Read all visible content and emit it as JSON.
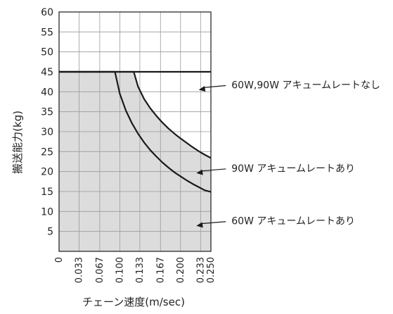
{
  "chart_data": {
    "type": "area",
    "xlabel": "チェーン速度(m/sec)",
    "ylabel": "搬送能力(kg)",
    "xlim": [
      0,
      0.25
    ],
    "ylim": [
      0,
      60
    ],
    "x_ticks": [
      "0",
      "0.033",
      "0.067",
      "0.100",
      "0.133",
      "0.167",
      "0.200",
      "0.233",
      "0.250"
    ],
    "x_tick_values": [
      0,
      0.033,
      0.067,
      0.1,
      0.133,
      0.167,
      0.2,
      0.233,
      0.25
    ],
    "y_ticks": [
      "5",
      "10",
      "15",
      "20",
      "25",
      "30",
      "35",
      "40",
      "45",
      "50",
      "55",
      "60"
    ],
    "y_tick_values": [
      5,
      10,
      15,
      20,
      25,
      30,
      35,
      40,
      45,
      50,
      55,
      60
    ],
    "grid": true,
    "fill_color": "#dcdcdc",
    "line_color": "#1a1a1a",
    "series": [
      {
        "name": "60W,90W アキュームレートなし",
        "x": [
          0,
          0.25
        ],
        "y": [
          45,
          45
        ]
      },
      {
        "name": "90W アキュームレートあり",
        "x": [
          0,
          0.123,
          0.13,
          0.14,
          0.15,
          0.16,
          0.17,
          0.18,
          0.19,
          0.2,
          0.21,
          0.22,
          0.23,
          0.24,
          0.25
        ],
        "y": [
          45,
          45,
          41.3,
          38.2,
          35.9,
          34.0,
          32.3,
          30.8,
          29.5,
          28.3,
          27.2,
          26.1,
          25.1,
          24.2,
          23.4
        ]
      },
      {
        "name": "60W アキュームレートあり",
        "x": [
          0,
          0.092,
          0.1,
          0.11,
          0.12,
          0.13,
          0.14,
          0.15,
          0.16,
          0.17,
          0.18,
          0.19,
          0.2,
          0.21,
          0.22,
          0.23,
          0.24,
          0.25
        ],
        "y": [
          45,
          45,
          39.5,
          35.3,
          32.1,
          29.5,
          27.3,
          25.4,
          23.8,
          22.3,
          21.0,
          19.8,
          18.8,
          17.8,
          16.9,
          16.1,
          15.3,
          14.9
        ]
      }
    ],
    "annotations": [
      {
        "text": "60W,90W アキュームレートなし",
        "x": 0.23,
        "y": 40.5,
        "label_x": 0.27
      },
      {
        "text": "90W アキュームレートあり",
        "x": 0.226,
        "y": 19.6,
        "label_x": 0.27
      },
      {
        "text": "60W アキュームレートあり",
        "x": 0.226,
        "y": 6.4,
        "label_x": 0.27
      }
    ]
  }
}
